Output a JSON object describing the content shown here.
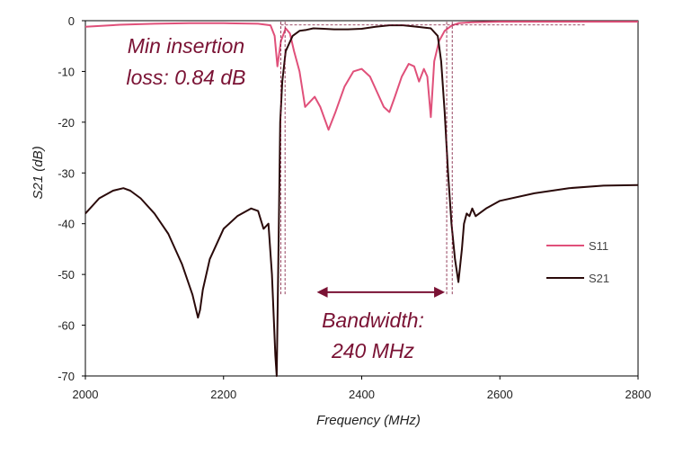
{
  "chart_data": {
    "type": "line",
    "title": "",
    "xlabel": "Frequency (MHz)",
    "ylabel": "S21 (dB)",
    "xlim": [
      2000,
      2800
    ],
    "ylim": [
      -70,
      0
    ],
    "xticks": [
      2000,
      2200,
      2400,
      2600,
      2800
    ],
    "yticks": [
      0,
      -10,
      -20,
      -30,
      -40,
      -50,
      -60,
      -70
    ],
    "legend_position": "right",
    "grid": false,
    "series": [
      {
        "name": "S11",
        "color": "#e0507a",
        "x": [
          2000,
          2050,
          2100,
          2150,
          2200,
          2250,
          2268,
          2274,
          2278,
          2283,
          2290,
          2296,
          2302,
          2310,
          2318,
          2325,
          2332,
          2340,
          2352,
          2362,
          2375,
          2388,
          2400,
          2412,
          2422,
          2432,
          2440,
          2448,
          2458,
          2468,
          2476,
          2483,
          2490,
          2495,
          2500,
          2505,
          2512,
          2520,
          2530,
          2540,
          2560,
          2600,
          2700,
          2800
        ],
        "y": [
          -1.2,
          -0.8,
          -0.6,
          -0.5,
          -0.5,
          -0.6,
          -0.9,
          -3,
          -9,
          -4,
          -1.5,
          -2.5,
          -6,
          -10,
          -17,
          -16,
          -15,
          -17,
          -21.5,
          -18,
          -13,
          -10,
          -9.5,
          -11,
          -14,
          -17,
          -18,
          -15,
          -11,
          -8.5,
          -9,
          -12,
          -9.5,
          -11,
          -19,
          -8,
          -4,
          -2,
          -1,
          -0.5,
          -0.3,
          -0.2,
          -0.2,
          -0.2
        ]
      },
      {
        "name": "S21",
        "color": "#2a0a0a",
        "x": [
          2000,
          2020,
          2040,
          2055,
          2065,
          2080,
          2100,
          2120,
          2140,
          2155,
          2163,
          2166,
          2170,
          2180,
          2200,
          2220,
          2240,
          2250,
          2258,
          2265,
          2270,
          2275,
          2277,
          2278,
          2280,
          2282,
          2285,
          2290,
          2300,
          2310,
          2320,
          2330,
          2345,
          2360,
          2380,
          2400,
          2420,
          2440,
          2460,
          2480,
          2500,
          2510,
          2515,
          2520,
          2525,
          2530,
          2535,
          2540,
          2545,
          2548,
          2552,
          2556,
          2560,
          2565,
          2570,
          2580,
          2600,
          2650,
          2700,
          2750,
          2800
        ],
        "y": [
          -38,
          -35,
          -33.5,
          -33,
          -33.5,
          -35,
          -38,
          -42,
          -48,
          -54,
          -58.5,
          -57,
          -53,
          -47,
          -41,
          -38.5,
          -37,
          -37.5,
          -41,
          -40,
          -50,
          -66,
          -70,
          -60,
          -40,
          -20,
          -12,
          -6,
          -3,
          -2,
          -1.8,
          -1.5,
          -1.6,
          -1.7,
          -1.7,
          -1.6,
          -1.2,
          -0.9,
          -0.9,
          -1.2,
          -1.5,
          -3,
          -8,
          -18,
          -30,
          -40,
          -47,
          -51.5,
          -45,
          -40,
          -38,
          -38.5,
          -37,
          -38.5,
          -38,
          -37,
          -35.5,
          -34,
          -33,
          -32.5,
          -32.4
        ]
      }
    ],
    "annotations": {
      "line1": "Min insertion",
      "line2": "loss: 0.84 dB",
      "bw_line1": "Bandwidth:",
      "bw_line2": "240 MHz",
      "min_loss_db": -0.84,
      "bandwidth_from": 2283,
      "bandwidth_to": 2523,
      "arrow_y": -53.5
    }
  }
}
